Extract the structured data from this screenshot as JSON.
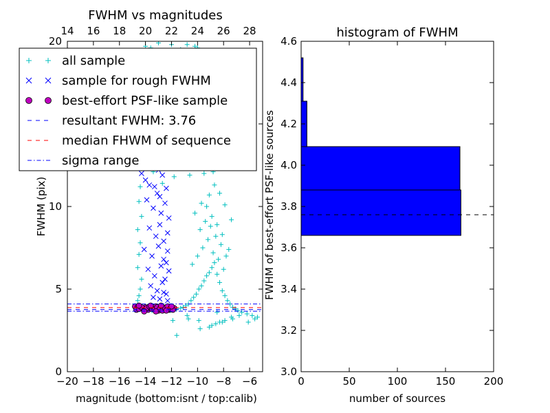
{
  "chart_data": [
    {
      "type": "scatter",
      "title": "FWHM vs magnitudes",
      "xlabel": "magnitude (bottom:isnt / top:calib)",
      "ylabel": "FWHM (pix)",
      "xlim": [
        -20,
        -5
      ],
      "ylim": [
        0,
        20
      ],
      "x_ticks": [
        "−20",
        "−18",
        "−16",
        "−14",
        "−12",
        "−10",
        "−8",
        "−6"
      ],
      "y_ticks": [
        "0",
        "5",
        "10",
        "15",
        "20"
      ],
      "top_axis": {
        "ticks": [
          "14",
          "16",
          "18",
          "20",
          "22",
          "24",
          "26",
          "28"
        ],
        "values": [
          14,
          16,
          18,
          20,
          22,
          24,
          26,
          28
        ],
        "bottom_equivalent": [
          -20,
          -18,
          -16,
          -14,
          -12,
          -10,
          -8,
          -6
        ]
      },
      "legend": {
        "location": "top-left",
        "entries": [
          "all sample",
          "sample for rough FWHM",
          "best-effort PSF-like sample",
          "resultant FWHM: 3.76",
          "median FHWM of sequence",
          "sigma range"
        ]
      },
      "series": [
        {
          "name": "all sample",
          "marker": "+",
          "color": "#00bfbf",
          "x": [
            -14.6,
            -14.5,
            -14.4,
            -14.2,
            -14.1,
            -13.9,
            -13.7,
            -13.5,
            -13.3,
            -13.1,
            -12.9,
            -12.7,
            -12.5,
            -12.3,
            -12.1,
            -11.9,
            -14.6,
            -14.5,
            -14.4,
            -14.3,
            -14.6,
            -14.5,
            -14.4,
            -14.6,
            -14.3,
            -14.5,
            -14.4,
            -13.8,
            -13.2,
            -12.8,
            -12.2,
            -13.5,
            -13.0,
            -12.5,
            -12.0,
            -13.6,
            -12.9,
            -12.4,
            -11.9,
            -13.4,
            -12.7,
            -12.2,
            -13.7,
            -12.6,
            -11.6,
            -11.3,
            -11.1,
            -10.9,
            -10.7,
            -10.5,
            -10.3,
            -10.1,
            -9.9,
            -9.7,
            -9.5,
            -9.3,
            -9.1,
            -8.9,
            -8.7,
            -8.5,
            -8.3,
            -8.1,
            -7.9,
            -7.7,
            -7.5,
            -7.3,
            -7.1,
            -6.9,
            -6.6,
            -6.2,
            -5.8,
            -5.4,
            -10.4,
            -10.0,
            -9.6,
            -9.2,
            -8.8,
            -8.4,
            -8.0,
            -9.8,
            -9.4,
            -9.0,
            -8.6,
            -8.2,
            -7.8,
            -10.2,
            -9.7,
            -9.3,
            -8.9,
            -8.5,
            -8.1,
            -7.6,
            -9.1,
            -8.7,
            -8.3,
            -7.9,
            -7.4,
            -10.6,
            -10.1,
            -9.5,
            -11.0,
            -10.4,
            -9.9,
            -9.3,
            -8.8,
            -11.2,
            -10.8,
            -10.3,
            -9.8,
            -9.4,
            -10.6,
            -10.0,
            -9.6,
            -9.0,
            -10.3,
            -9.7,
            -9.2,
            -10.9,
            -10.5,
            -10.0,
            -9.5,
            -11.4,
            -11.0,
            -10.6,
            -10.1,
            -11.3,
            -10.8,
            -10.2,
            -9.9,
            -11.1,
            -10.5,
            -8.6,
            -7.9,
            -7.3,
            -6.8,
            -6.1,
            -5.6,
            -9.8,
            -8.9,
            -8.1,
            -7.4,
            -10.7,
            -9.9,
            -9.1,
            -8.3,
            -11.6,
            -11.9,
            -10.8,
            -8.5,
            -13.2,
            -12.8,
            -14.0,
            -13.5,
            -12.6,
            -11.8,
            -10.0,
            -9.0,
            -13.0,
            -12.0,
            -11.0,
            -9.5,
            -8.2
          ],
          "y": [
            3.9,
            3.85,
            3.8,
            3.75,
            3.9,
            3.8,
            3.85,
            3.7,
            3.9,
            3.8,
            3.75,
            3.85,
            3.8,
            3.9,
            3.7,
            3.8,
            4.3,
            4.6,
            5.0,
            5.6,
            6.3,
            7.1,
            7.8,
            8.6,
            9.4,
            10.3,
            11.2,
            12.6,
            13.4,
            14.1,
            15.0,
            16.2,
            17.1,
            18.3,
            19.2,
            19.6,
            18.8,
            16.9,
            15.6,
            12.1,
            11.4,
            13.7,
            17.8,
            14.5,
            3.8,
            3.85,
            3.9,
            4.0,
            4.1,
            4.3,
            4.5,
            4.7,
            5.0,
            5.2,
            5.5,
            5.8,
            6.0,
            6.3,
            6.6,
            5.9,
            5.4,
            4.9,
            4.6,
            4.3,
            4.1,
            3.9,
            3.8,
            3.7,
            3.6,
            3.5,
            3.4,
            3.3,
            6.5,
            7.0,
            7.5,
            8.0,
            7.2,
            6.8,
            6.2,
            8.6,
            9.1,
            8.8,
            8.2,
            7.7,
            7.0,
            9.6,
            10.2,
            10.0,
            9.4,
            8.9,
            8.3,
            7.4,
            10.7,
            11.3,
            10.8,
            10.1,
            9.2,
            11.9,
            12.4,
            12.0,
            12.8,
            13.3,
            13.0,
            12.5,
            12.1,
            14.0,
            14.6,
            14.2,
            13.7,
            13.4,
            15.3,
            15.8,
            15.1,
            14.7,
            16.4,
            16.9,
            16.2,
            17.5,
            18.0,
            17.6,
            17.1,
            18.6,
            19.1,
            18.8,
            18.3,
            19.5,
            19.8,
            19.7,
            19.3,
            16.0,
            15.4,
            2.9,
            3.1,
            3.2,
            3.4,
            3.0,
            3.2,
            2.6,
            2.8,
            3.0,
            3.3,
            3.2,
            3.1,
            2.7,
            3.0,
            2.2,
            3.1,
            3.4,
            3.6,
            18.5,
            19.0,
            19.7,
            15.8,
            13.2,
            11.8,
            19.6,
            17.4,
            19.9,
            19.8,
            19.4,
            16.8,
            19.2
          ]
        },
        {
          "name": "sample for rough FWHM",
          "marker": "x",
          "color": "#0000ff",
          "x": [
            -14.2,
            -14.0,
            -13.6,
            -13.3,
            -13.0,
            -12.7,
            -12.4,
            -12.1,
            -13.9,
            -13.4,
            -13.1,
            -12.8,
            -12.5,
            -12.2,
            -13.7,
            -13.2,
            -12.9,
            -12.6,
            -12.3,
            -14.1,
            -13.5,
            -13.0,
            -12.6,
            -12.3,
            -13.8,
            -13.3,
            -12.8,
            -12.5,
            -12.2,
            -13.6,
            -13.1,
            -12.7,
            -12.4,
            -13.4,
            -12.9,
            -12.6,
            -12.3,
            -14.3,
            -13.7,
            -12.9,
            -12.4
          ],
          "y": [
            12.4,
            11.6,
            12.8,
            11.2,
            12.2,
            11.9,
            11.1,
            12.5,
            10.4,
            9.9,
            10.8,
            9.6,
            10.2,
            9.3,
            8.7,
            8.2,
            8.9,
            7.9,
            8.4,
            7.4,
            7.0,
            7.6,
            6.8,
            7.3,
            6.2,
            5.8,
            6.4,
            5.6,
            6.1,
            5.2,
            4.9,
            5.4,
            4.7,
            4.5,
            4.4,
            4.8,
            4.3,
            12.0,
            11.3,
            10.6,
            6.6
          ]
        },
        {
          "name": "best-effort PSF-like sample",
          "marker": "o",
          "color": "#bf00bf",
          "x": [
            -14.8,
            -14.6,
            -14.4,
            -14.2,
            -14.0,
            -13.8,
            -13.6,
            -13.4,
            -13.2,
            -13.0,
            -12.8,
            -12.6,
            -12.4,
            -12.2,
            -12.0,
            -11.8,
            -14.7,
            -14.5,
            -14.3,
            -14.1,
            -13.9,
            -13.7,
            -13.5,
            -13.3,
            -13.1,
            -12.9,
            -12.7,
            -12.5,
            -12.3,
            -12.1,
            -11.9,
            -14.5,
            -14.1,
            -13.6,
            -13.2,
            -12.8,
            -12.4,
            -12.0
          ],
          "y": [
            3.95,
            3.9,
            3.85,
            3.8,
            3.9,
            3.75,
            3.85,
            3.8,
            3.95,
            3.7,
            3.85,
            3.8,
            3.9,
            3.75,
            3.8,
            3.85,
            3.75,
            3.8,
            3.9,
            3.7,
            3.85,
            3.95,
            3.8,
            3.75,
            3.9,
            3.8,
            3.7,
            3.85,
            3.95,
            3.8,
            3.75,
            4.0,
            3.65,
            4.0,
            3.65,
            4.0,
            3.7,
            3.95
          ]
        },
        {
          "name": "resultant FWHM: 3.76",
          "type": "hline",
          "value": 3.76,
          "color": "#0000ff",
          "dash": "dashed"
        },
        {
          "name": "median FHWM of sequence",
          "type": "hline",
          "value": 3.88,
          "color": "#ff0000",
          "dash": "dashed"
        },
        {
          "name": "sigma range",
          "type": "hline",
          "values": [
            3.66,
            4.1
          ],
          "color": "#0000ff",
          "dash": "dashdot"
        }
      ]
    },
    {
      "type": "bar",
      "orientation": "horizontal",
      "title": "histogram of FWHM",
      "xlabel": "number of sources",
      "ylabel": "FWHM of best-effort PSF-like sources",
      "xlim": [
        0,
        200
      ],
      "ylim": [
        3.0,
        4.6
      ],
      "x_ticks": [
        "0",
        "50",
        "100",
        "150",
        "200"
      ],
      "y_ticks": [
        "3.0",
        "3.2",
        "3.4",
        "3.6",
        "3.8",
        "4.0",
        "4.2",
        "4.4",
        "4.6"
      ],
      "bar_color": "#0000ff",
      "bins": [
        {
          "low": 3.66,
          "high": 3.88,
          "count": 166
        },
        {
          "low": 3.88,
          "high": 4.09,
          "count": 165
        },
        {
          "low": 4.09,
          "high": 4.31,
          "count": 6
        },
        {
          "low": 4.31,
          "high": 4.52,
          "count": 2
        }
      ],
      "reference_line": {
        "value": 3.76,
        "color": "#000000",
        "dash": "dashed"
      }
    }
  ]
}
